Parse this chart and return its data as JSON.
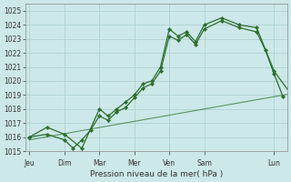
{
  "background_color": "#cce8e8",
  "grid_color": "#aacccc",
  "line_color": "#2d6e2d",
  "xlabel": "Pression niveau de la mer( hPa )",
  "ylim": [
    1015,
    1025.5
  ],
  "yticks": [
    1015,
    1016,
    1017,
    1018,
    1019,
    1020,
    1021,
    1022,
    1023,
    1024,
    1025
  ],
  "day_labels": [
    "Jeu",
    "Dim",
    "Mar",
    "Mer",
    "Ven",
    "Sam",
    "Lun"
  ],
  "day_positions": [
    0,
    16,
    32,
    48,
    64,
    80,
    112
  ],
  "xlim": [
    -2,
    118
  ],
  "line1_x": [
    0,
    8,
    16,
    24,
    32,
    36,
    40,
    44,
    48,
    52,
    56,
    60,
    64,
    68,
    72,
    76,
    80,
    88,
    96,
    104,
    112,
    120
  ],
  "line1_y": [
    1016.0,
    1016.7,
    1016.2,
    1015.2,
    1018.0,
    1017.5,
    1018.0,
    1018.5,
    1019.0,
    1019.8,
    1020.0,
    1021.0,
    1023.7,
    1023.2,
    1023.5,
    1022.8,
    1024.0,
    1024.5,
    1024.0,
    1023.8,
    1020.7,
    1019.0
  ],
  "line2_x": [
    0,
    8,
    16,
    20,
    24,
    28,
    32,
    36,
    40,
    44,
    48,
    52,
    56,
    60,
    64,
    68,
    72,
    76,
    80,
    88,
    96,
    104,
    108,
    112,
    116
  ],
  "line2_y": [
    1016.0,
    1016.2,
    1015.8,
    1015.2,
    1015.8,
    1016.5,
    1017.5,
    1017.2,
    1017.8,
    1018.1,
    1018.8,
    1019.5,
    1019.8,
    1020.7,
    1023.2,
    1022.9,
    1023.3,
    1022.6,
    1023.7,
    1024.3,
    1023.8,
    1023.5,
    1022.2,
    1020.5,
    1018.9
  ],
  "line3_x": [
    0,
    120
  ],
  "line3_y": [
    1015.8,
    1019.1
  ]
}
